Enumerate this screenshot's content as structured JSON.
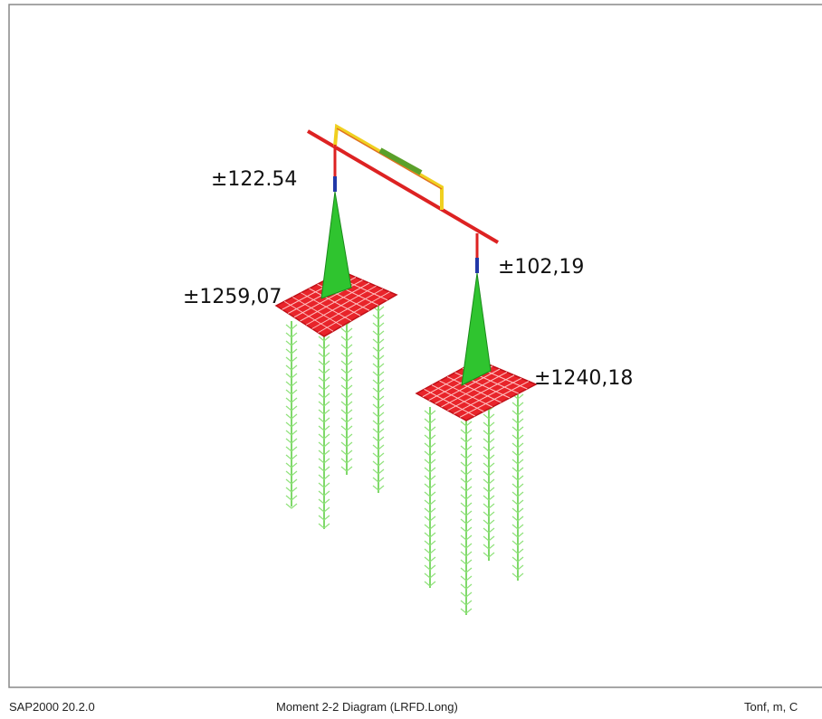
{
  "viewport": {
    "labels": [
      "±122.54",
      "±102,19",
      "±1259,07",
      "±1240,18"
    ]
  },
  "status_bar": {
    "version": "SAP2000 20.2.0",
    "diagram": "Moment 2-2 Diagram (LRFD.Long)",
    "units": "Tonf, m, C"
  }
}
